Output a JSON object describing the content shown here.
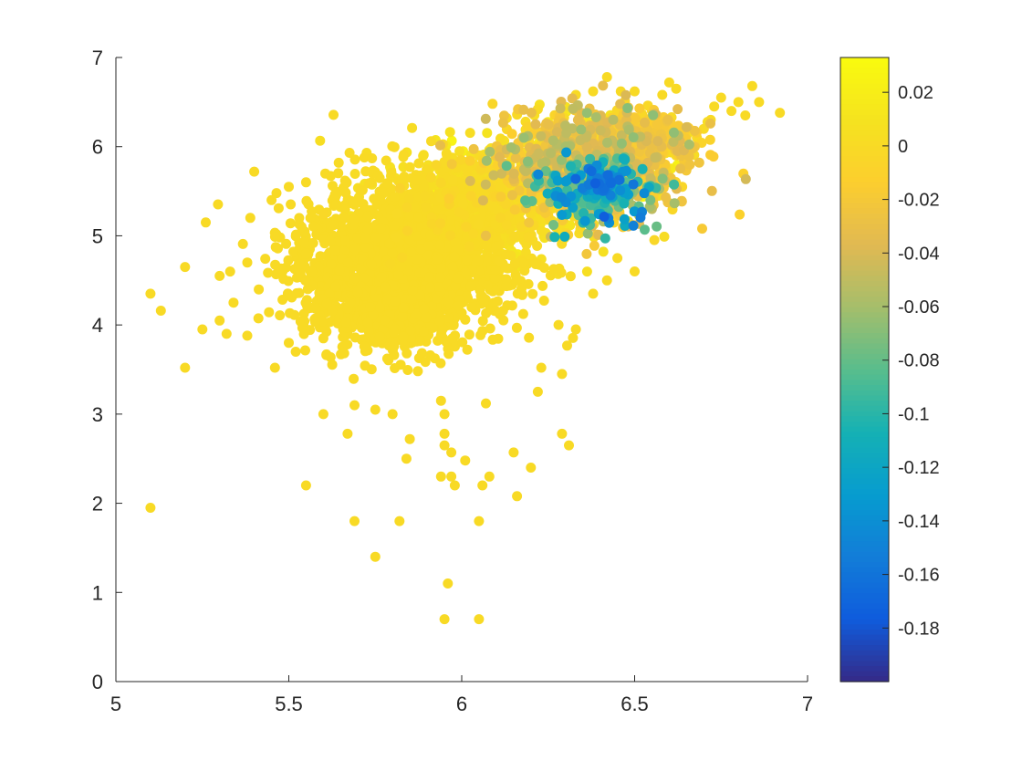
{
  "chart_data": {
    "type": "scatter",
    "title": "",
    "xlabel": "",
    "ylabel": "",
    "xlim": [
      5,
      7
    ],
    "ylim": [
      0,
      7
    ],
    "xticks": [
      5,
      5.5,
      6,
      6.5,
      7
    ],
    "yticks": [
      0,
      1,
      2,
      3,
      4,
      5,
      6,
      7
    ],
    "xtick_labels": [
      "5",
      "5.5",
      "6",
      "6.5",
      "7"
    ],
    "ytick_labels": [
      "0",
      "1",
      "2",
      "3",
      "4",
      "5",
      "6",
      "7"
    ],
    "grid": false,
    "colormap": "parula",
    "colorbar": {
      "clim": [
        -0.2,
        0.033
      ],
      "ticks": [
        0.02,
        0,
        -0.02,
        -0.04,
        -0.06,
        -0.08,
        -0.1,
        -0.12,
        -0.14,
        -0.16,
        -0.18
      ],
      "tick_labels": [
        "0.02",
        "0",
        "-0.02",
        "-0.04",
        "-0.06",
        "-0.08",
        "-0.1",
        "-0.12",
        "-0.14",
        "-0.16",
        "-0.18"
      ]
    },
    "points": [
      [
        5.1,
        1.95,
        0
      ],
      [
        5.95,
        0.7,
        0
      ],
      [
        6.05,
        0.7,
        0
      ],
      [
        5.96,
        1.1,
        0
      ],
      [
        5.75,
        1.4,
        0
      ],
      [
        5.69,
        1.8,
        0
      ],
      [
        5.82,
        1.8,
        0
      ],
      [
        6.05,
        1.8,
        0
      ],
      [
        5.55,
        2.2,
        0
      ],
      [
        5.98,
        2.2,
        0
      ],
      [
        6.06,
        2.2,
        0
      ],
      [
        5.94,
        2.3,
        0
      ],
      [
        5.97,
        2.3,
        0
      ],
      [
        6.08,
        2.3,
        0
      ],
      [
        6.16,
        2.08,
        0
      ],
      [
        6.2,
        2.4,
        0
      ],
      [
        5.97,
        2.57,
        0
      ],
      [
        6.01,
        2.48,
        0
      ],
      [
        6.15,
        2.57,
        0
      ],
      [
        5.84,
        2.5,
        0
      ],
      [
        5.85,
        2.72,
        0
      ],
      [
        5.95,
        2.65,
        0
      ],
      [
        5.95,
        2.78,
        0
      ],
      [
        5.67,
        2.78,
        0
      ],
      [
        6.29,
        2.78,
        0
      ],
      [
        6.31,
        2.65,
        0
      ],
      [
        5.6,
        3.0,
        0
      ],
      [
        5.69,
        3.1,
        0
      ],
      [
        5.75,
        3.05,
        0
      ],
      [
        5.8,
        3.0,
        0
      ],
      [
        5.95,
        3.0,
        0
      ],
      [
        5.94,
        3.15,
        0
      ],
      [
        6.07,
        3.12,
        0
      ],
      [
        6.22,
        3.25,
        0
      ],
      [
        6.29,
        3.45,
        0
      ],
      [
        6.23,
        3.52,
        0
      ],
      [
        5.2,
        3.52,
        0
      ],
      [
        5.1,
        4.35,
        0
      ],
      [
        5.13,
        4.16,
        0
      ],
      [
        5.2,
        4.65,
        0
      ],
      [
        5.25,
        3.95,
        0
      ],
      [
        5.3,
        4.05,
        0
      ],
      [
        5.26,
        5.15,
        0
      ],
      [
        5.3,
        4.55,
        0
      ],
      [
        5.34,
        4.25,
        0
      ],
      [
        5.38,
        4.7,
        0
      ],
      [
        5.32,
        3.9,
        0
      ],
      [
        5.38,
        3.88,
        0
      ],
      [
        5.4,
        5.72,
        0
      ],
      [
        5.45,
        5.4,
        0
      ],
      [
        5.46,
        3.52,
        0
      ],
      [
        5.5,
        5.55,
        0
      ],
      [
        5.5,
        3.8,
        0
      ],
      [
        5.53,
        5.2,
        0
      ],
      [
        5.55,
        5.6,
        0
      ],
      [
        5.52,
        3.7,
        0
      ],
      [
        5.6,
        3.85,
        0
      ],
      [
        6.33,
        3.95,
        0
      ],
      [
        6.28,
        4.0,
        0
      ],
      [
        6.38,
        4.35,
        0
      ],
      [
        6.42,
        4.5,
        0
      ],
      [
        6.5,
        4.6,
        0
      ],
      [
        6.45,
        4.75,
        0
      ],
      [
        6.6,
        5.6,
        0
      ],
      [
        6.62,
        5.9,
        0
      ],
      [
        6.65,
        6.0,
        0
      ],
      [
        6.68,
        6.1,
        0
      ],
      [
        6.7,
        6.2,
        0
      ],
      [
        6.72,
        6.3,
        0
      ],
      [
        6.73,
        6.45,
        0
      ],
      [
        6.75,
        6.55,
        0
      ],
      [
        6.78,
        6.4,
        0
      ],
      [
        6.8,
        6.5,
        0
      ],
      [
        6.82,
        6.35,
        0
      ],
      [
        6.84,
        6.68,
        0
      ],
      [
        6.86,
        6.5,
        0
      ],
      [
        6.92,
        6.38,
        0
      ],
      [
        6.6,
        6.72,
        0
      ],
      [
        6.62,
        6.65,
        0
      ],
      [
        6.58,
        6.58,
        0
      ],
      [
        6.42,
        6.78,
        0
      ],
      [
        6.38,
        6.62,
        0
      ],
      [
        6.33,
        6.58,
        0
      ],
      [
        6.22,
        6.42,
        0
      ],
      [
        6.5,
        6.62,
        0
      ],
      [
        6.46,
        6.62,
        0
      ],
      [
        6.13,
        6.32,
        0
      ],
      [
        6.18,
        6.05,
        0
      ],
      [
        6.55,
        6.4,
        0
      ],
      [
        6.55,
        5.3,
        -0.05
      ],
      [
        6.57,
        5.45,
        0
      ]
    ],
    "clusters": [
      {
        "cx": 5.85,
        "cy": 4.75,
        "sx": 0.16,
        "sy": 0.42,
        "n": 1700,
        "seed": 11,
        "c": 0,
        "cs": 0
      },
      {
        "cx": 5.78,
        "cy": 4.25,
        "sx": 0.1,
        "sy": 0.28,
        "n": 500,
        "seed": 12,
        "c": 0,
        "cs": 0
      },
      {
        "cx": 6.05,
        "cy": 5.35,
        "sx": 0.14,
        "sy": 0.3,
        "n": 700,
        "seed": 13,
        "c": 0.004,
        "cs": 0.004
      },
      {
        "cx": 6.35,
        "cy": 5.8,
        "sx": 0.14,
        "sy": 0.3,
        "n": 900,
        "seed": 14,
        "c": -0.02,
        "cs": 0.02
      },
      {
        "cx": 6.52,
        "cy": 6.1,
        "sx": 0.08,
        "sy": 0.15,
        "n": 250,
        "seed": 15,
        "c": -0.01,
        "cs": 0.012
      },
      {
        "cx": 6.39,
        "cy": 5.5,
        "sx": 0.08,
        "sy": 0.2,
        "n": 230,
        "seed": 16,
        "c": -0.09,
        "cs": 0.03
      },
      {
        "cx": 6.41,
        "cy": 5.6,
        "sx": 0.04,
        "sy": 0.1,
        "n": 35,
        "seed": 17,
        "c": -0.15,
        "cs": 0.01
      },
      {
        "cx": 5.93,
        "cy": 5.3,
        "sx": 0.05,
        "sy": 0.08,
        "n": 80,
        "seed": 18,
        "c": 0.028,
        "cs": 0.002
      }
    ]
  }
}
